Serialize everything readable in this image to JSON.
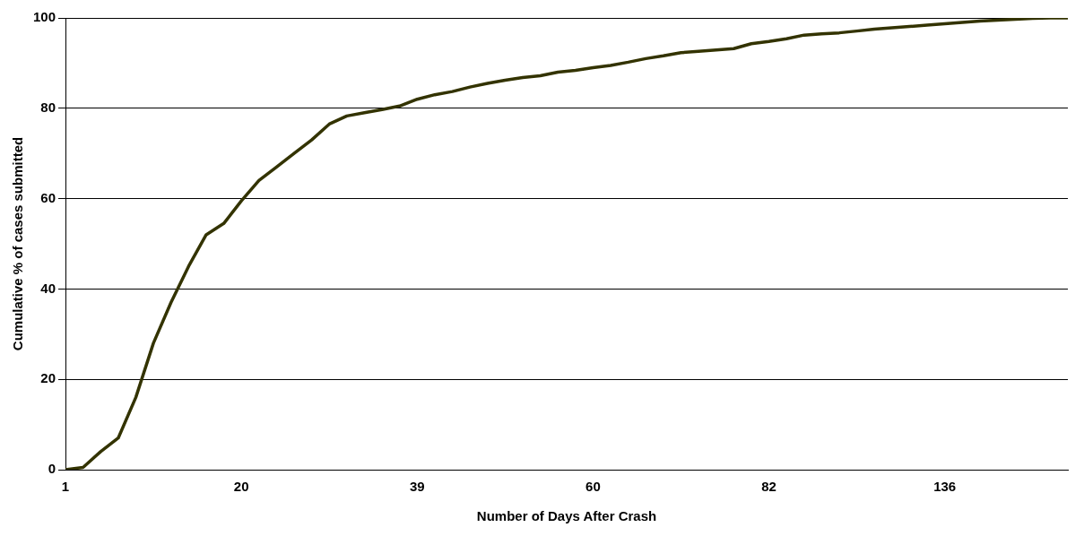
{
  "chart_data": {
    "type": "line",
    "xlabel": "Number of Days After Crash",
    "ylabel": "Cumulative % of cases submitted",
    "categories": [
      "1",
      null,
      null,
      null,
      null,
      null,
      null,
      null,
      null,
      null,
      "20",
      null,
      null,
      null,
      null,
      null,
      null,
      null,
      null,
      null,
      "39",
      null,
      null,
      null,
      null,
      null,
      null,
      null,
      null,
      null,
      "60",
      null,
      null,
      null,
      null,
      null,
      null,
      null,
      null,
      null,
      "82",
      null,
      null,
      null,
      null,
      null,
      null,
      null,
      null,
      null,
      "136",
      null,
      null,
      null,
      null,
      null,
      null,
      null
    ],
    "series": [
      {
        "color": "#333300",
        "values": [
          0,
          0.5,
          4,
          7,
          16,
          28,
          37,
          45,
          52,
          54.5,
          59.5,
          64,
          67,
          70,
          73,
          76.5,
          78.3,
          79,
          79.7,
          80.5,
          82,
          83,
          83.7,
          84.7,
          85.5,
          86.2,
          86.8,
          87.2,
          88,
          88.4,
          89,
          89.5,
          90.2,
          91,
          91.6,
          92.3,
          92.6,
          92.9,
          93.2,
          94.3,
          94.8,
          95.4,
          96.2,
          96.5,
          96.7,
          97.1,
          97.5,
          97.8,
          98.1,
          98.4,
          98.7,
          99,
          99.3,
          99.5,
          99.7,
          99.9,
          100,
          100
        ]
      }
    ],
    "ylim": [
      0,
      100
    ],
    "yticks": [
      0,
      20,
      40,
      60,
      80,
      100
    ],
    "grid": "y",
    "legend": false,
    "marker": "none",
    "line_style": "solid"
  }
}
